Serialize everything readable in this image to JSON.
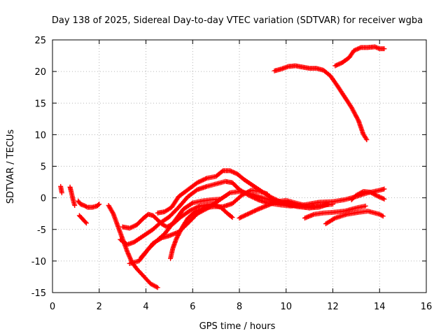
{
  "chart_data": {
    "type": "scatter",
    "title": "Day 138 of 2025, Sidereal Day-to-day VTEC variation (SDTVAR) for receiver wgba",
    "xlabel": "GPS time / hours",
    "ylabel": "SDTVAR / TECUs",
    "xlim": [
      0,
      16
    ],
    "ylim": [
      -15,
      25
    ],
    "xticks": [
      "0",
      "2",
      "4",
      "6",
      "8",
      "10",
      "12",
      "14",
      "16"
    ],
    "yticks": [
      "-15",
      "-10",
      "-5",
      "0",
      "5",
      "10",
      "15",
      "20",
      "25"
    ],
    "grid": true,
    "marker": "+",
    "color": "#ff0000",
    "series": [
      {
        "name": "arc-1",
        "points": [
          [
            0.35,
            1.8
          ],
          [
            0.4,
            0.8
          ]
        ]
      },
      {
        "name": "arc-2",
        "points": [
          [
            0.75,
            1.7
          ],
          [
            0.8,
            1.0
          ],
          [
            0.85,
            0.2
          ],
          [
            0.9,
            -0.6
          ],
          [
            0.95,
            -1.2
          ]
        ]
      },
      {
        "name": "arc-3",
        "points": [
          [
            1.1,
            -0.5
          ],
          [
            1.2,
            -1.0
          ],
          [
            1.35,
            -1.2
          ],
          [
            1.5,
            -1.5
          ],
          [
            1.7,
            -1.5
          ],
          [
            1.9,
            -1.3
          ],
          [
            2.0,
            -1.0
          ]
        ]
      },
      {
        "name": "arc-4",
        "points": [
          [
            1.15,
            -2.8
          ],
          [
            1.45,
            -4.0
          ]
        ]
      },
      {
        "name": "arc-5",
        "points": [
          [
            2.4,
            -1.2
          ],
          [
            2.6,
            -2.5
          ],
          [
            2.8,
            -4.5
          ],
          [
            3.0,
            -6.5
          ],
          [
            3.2,
            -8.5
          ],
          [
            3.4,
            -10.2
          ],
          [
            3.6,
            -11.2
          ],
          [
            3.8,
            -12.0
          ],
          [
            4.0,
            -12.8
          ],
          [
            4.2,
            -13.6
          ],
          [
            4.5,
            -14.2
          ]
        ]
      },
      {
        "name": "arc-6",
        "points": [
          [
            3.0,
            -4.6
          ],
          [
            3.3,
            -4.8
          ],
          [
            3.6,
            -4.3
          ],
          [
            3.9,
            -3.2
          ],
          [
            4.1,
            -2.6
          ],
          [
            4.3,
            -2.8
          ],
          [
            4.5,
            -3.5
          ],
          [
            4.7,
            -4.2
          ],
          [
            4.9,
            -4.6
          ],
          [
            5.2,
            -4.0
          ],
          [
            5.5,
            -3.0
          ],
          [
            5.9,
            -2.0
          ],
          [
            6.3,
            -1.3
          ],
          [
            6.8,
            -1.0
          ],
          [
            7.2,
            -1.5
          ],
          [
            7.5,
            -2.5
          ],
          [
            7.7,
            -3.1
          ]
        ]
      },
      {
        "name": "arc-7",
        "points": [
          [
            2.9,
            -6.6
          ],
          [
            3.2,
            -7.4
          ],
          [
            3.5,
            -7.0
          ],
          [
            3.9,
            -6.0
          ],
          [
            4.3,
            -5.0
          ],
          [
            4.6,
            -4.0
          ],
          [
            5.0,
            -3.0
          ],
          [
            5.4,
            -1.5
          ],
          [
            5.8,
            0.2
          ],
          [
            6.2,
            1.3
          ],
          [
            6.6,
            1.8
          ],
          [
            7.0,
            2.2
          ],
          [
            7.4,
            2.6
          ],
          [
            7.7,
            2.4
          ],
          [
            8.0,
            1.3
          ],
          [
            8.4,
            0.4
          ],
          [
            8.8,
            -0.3
          ],
          [
            9.2,
            -0.8
          ],
          [
            9.7,
            -1.1
          ],
          [
            10.2,
            -1.3
          ],
          [
            10.8,
            -1.1
          ],
          [
            11.4,
            -0.7
          ],
          [
            12.0,
            -0.6
          ],
          [
            12.5,
            -0.3
          ],
          [
            13.0,
            0.2
          ],
          [
            13.5,
            0.8
          ],
          [
            14.0,
            1.2
          ],
          [
            14.2,
            1.4
          ]
        ]
      },
      {
        "name": "arc-8",
        "points": [
          [
            3.3,
            -10.4
          ],
          [
            3.7,
            -10.0
          ],
          [
            4.0,
            -8.6
          ],
          [
            4.3,
            -7.2
          ],
          [
            4.7,
            -6.3
          ],
          [
            5.0,
            -6.0
          ],
          [
            5.4,
            -5.4
          ],
          [
            5.8,
            -4.0
          ],
          [
            6.2,
            -2.5
          ],
          [
            6.7,
            -1.5
          ],
          [
            7.2,
            -0.2
          ],
          [
            7.6,
            0.8
          ],
          [
            8.0,
            1.0
          ],
          [
            8.5,
            0.6
          ],
          [
            9.0,
            0.0
          ],
          [
            9.5,
            -0.5
          ],
          [
            10.0,
            -1.0
          ],
          [
            10.5,
            -1.4
          ],
          [
            11.0,
            -1.6
          ],
          [
            11.5,
            -1.2
          ],
          [
            12.0,
            -1.0
          ]
        ]
      },
      {
        "name": "arc-9",
        "points": [
          [
            3.8,
            -9.4
          ],
          [
            4.1,
            -8.1
          ],
          [
            4.4,
            -7.0
          ],
          [
            4.8,
            -5.7
          ],
          [
            5.2,
            -3.8
          ],
          [
            5.6,
            -1.8
          ],
          [
            6.0,
            -0.8
          ],
          [
            6.4,
            -0.5
          ],
          [
            6.8,
            -0.3
          ],
          [
            7.2,
            -0.2
          ]
        ]
      },
      {
        "name": "arc-10",
        "points": [
          [
            4.5,
            -2.4
          ],
          [
            4.8,
            -2.2
          ],
          [
            5.1,
            -1.5
          ],
          [
            5.4,
            0.2
          ],
          [
            5.8,
            1.3
          ],
          [
            6.2,
            2.4
          ],
          [
            6.6,
            3.1
          ],
          [
            7.0,
            3.4
          ],
          [
            7.3,
            4.3
          ],
          [
            7.6,
            4.3
          ],
          [
            7.9,
            3.8
          ],
          [
            8.2,
            2.9
          ],
          [
            8.6,
            1.9
          ],
          [
            9.0,
            0.9
          ],
          [
            9.4,
            0.0
          ],
          [
            9.8,
            -0.7
          ],
          [
            10.2,
            -1.0
          ],
          [
            10.6,
            -1.3
          ],
          [
            11.0,
            -1.6
          ],
          [
            11.4,
            -1.5
          ],
          [
            11.8,
            -1.0
          ]
        ]
      },
      {
        "name": "arc-11",
        "points": [
          [
            5.05,
            -9.6
          ],
          [
            5.15,
            -8.0
          ],
          [
            5.3,
            -6.5
          ],
          [
            5.45,
            -5.4
          ],
          [
            5.6,
            -4.4
          ],
          [
            5.8,
            -3.2
          ],
          [
            6.1,
            -2.2
          ],
          [
            6.5,
            -1.6
          ],
          [
            6.9,
            -1.4
          ],
          [
            7.3,
            -1.4
          ],
          [
            7.7,
            -0.9
          ],
          [
            8.1,
            0.4
          ],
          [
            8.5,
            1.2
          ],
          [
            8.9,
            1.0
          ],
          [
            9.2,
            0.6
          ]
        ]
      },
      {
        "name": "arc-12",
        "points": [
          [
            8.0,
            -3.2
          ],
          [
            8.4,
            -2.5
          ],
          [
            8.8,
            -1.8
          ],
          [
            9.2,
            -1.2
          ],
          [
            9.6,
            -0.6
          ],
          [
            10.0,
            -0.4
          ],
          [
            10.4,
            -0.8
          ],
          [
            10.8,
            -1.2
          ],
          [
            11.2,
            -1.4
          ]
        ]
      },
      {
        "name": "arc-13",
        "points": [
          [
            10.8,
            -3.2
          ],
          [
            11.2,
            -2.6
          ],
          [
            11.6,
            -2.4
          ],
          [
            12.0,
            -2.3
          ],
          [
            12.5,
            -2.1
          ],
          [
            13.0,
            -1.6
          ],
          [
            13.4,
            -1.3
          ]
        ]
      },
      {
        "name": "arc-14",
        "points": [
          [
            11.7,
            -4.1
          ],
          [
            12.1,
            -3.2
          ],
          [
            12.6,
            -2.6
          ],
          [
            13.1,
            -2.3
          ],
          [
            13.5,
            -2.1
          ],
          [
            14.0,
            -2.6
          ],
          [
            14.15,
            -2.9
          ]
        ]
      },
      {
        "name": "arc-15",
        "points": [
          [
            12.8,
            -0.3
          ],
          [
            13.0,
            0.4
          ],
          [
            13.3,
            1.0
          ],
          [
            13.6,
            0.9
          ],
          [
            13.9,
            0.3
          ],
          [
            14.2,
            -0.2
          ]
        ]
      },
      {
        "name": "arc-16",
        "points": [
          [
            9.5,
            20.1
          ],
          [
            9.8,
            20.4
          ],
          [
            10.1,
            20.8
          ],
          [
            10.4,
            20.9
          ],
          [
            10.7,
            20.7
          ],
          [
            11.0,
            20.5
          ],
          [
            11.3,
            20.5
          ],
          [
            11.6,
            20.2
          ],
          [
            11.9,
            19.3
          ],
          [
            12.2,
            17.7
          ],
          [
            12.5,
            16.0
          ],
          [
            12.8,
            14.3
          ],
          [
            13.1,
            12.2
          ],
          [
            13.3,
            10.1
          ],
          [
            13.45,
            9.2
          ]
        ]
      },
      {
        "name": "arc-17",
        "points": [
          [
            12.1,
            20.9
          ],
          [
            12.4,
            21.4
          ],
          [
            12.7,
            22.2
          ],
          [
            12.9,
            23.3
          ],
          [
            13.2,
            23.8
          ],
          [
            13.5,
            23.8
          ],
          [
            13.8,
            23.9
          ],
          [
            14.0,
            23.6
          ],
          [
            14.2,
            23.6
          ]
        ]
      }
    ]
  }
}
